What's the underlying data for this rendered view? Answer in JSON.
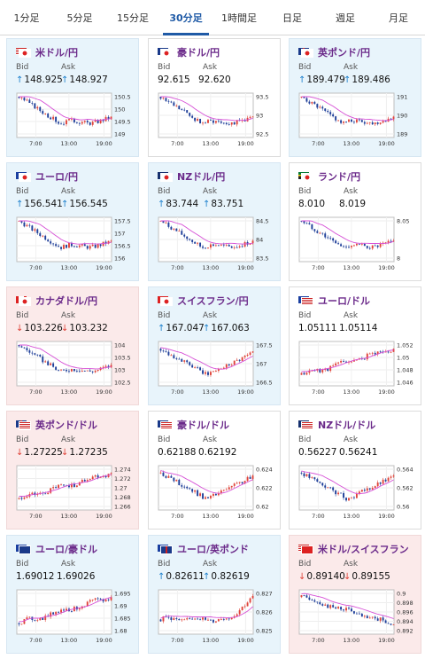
{
  "tabs": [
    {
      "label": "1分足",
      "active": false
    },
    {
      "label": "5分足",
      "active": false
    },
    {
      "label": "15分足",
      "active": false
    },
    {
      "label": "30分足",
      "active": true
    },
    {
      "label": "1時間足",
      "active": false
    },
    {
      "label": "日足",
      "active": false
    },
    {
      "label": "週足",
      "active": false
    },
    {
      "label": "月足",
      "active": false
    }
  ],
  "labels": {
    "bid": "Bid",
    "ask": "Ask"
  },
  "time_labels": [
    "7:00",
    "13:00",
    "19:00"
  ],
  "colors": {
    "up_arrow": "#1b7fcc",
    "down_arrow": "#e0443a",
    "candle_up": "#e0443a",
    "candle_down": "#1f3f99",
    "moving_average": "#d64fd6",
    "pair_text": "#6b2a8a",
    "tab_active": "#1f5aa6"
  },
  "cards": [
    {
      "pair": "米ドル/円",
      "flag_icons": [
        "us-flag-icon",
        "jp-flag-icon"
      ],
      "theme": "up",
      "bid_dir": "up",
      "ask_dir": "up",
      "bid": "148.925",
      "ask": "148.927",
      "y_ticks": [
        "150.5",
        "150",
        "149.5",
        "149"
      ],
      "trend": "down-then-flat"
    },
    {
      "pair": "豪ドル/円",
      "flag_icons": [
        "au-flag-icon",
        "jp-flag-icon"
      ],
      "theme": "flat",
      "bid_dir": "none",
      "ask_dir": "none",
      "bid": "92.615",
      "ask": "92.620",
      "y_ticks": [
        "93.5",
        "93",
        "92.5"
      ],
      "trend": "down-then-flat"
    },
    {
      "pair": "英ポンド/円",
      "flag_icons": [
        "gb-flag-icon",
        "jp-flag-icon"
      ],
      "theme": "up",
      "bid_dir": "up",
      "ask_dir": "up",
      "bid": "189.479",
      "ask": "189.486",
      "y_ticks": [
        "191",
        "190",
        "189"
      ],
      "trend": "down-then-flat"
    },
    {
      "pair": "ユーロ/円",
      "flag_icons": [
        "eu-flag-icon",
        "jp-flag-icon"
      ],
      "theme": "up",
      "bid_dir": "up",
      "ask_dir": "up",
      "bid": "156.541",
      "ask": "156.545",
      "y_ticks": [
        "157.5",
        "157",
        "156.5",
        "156"
      ],
      "trend": "down-then-flat"
    },
    {
      "pair": "NZドル/円",
      "flag_icons": [
        "nz-flag-icon",
        "jp-flag-icon"
      ],
      "theme": "up",
      "bid_dir": "up",
      "ask_dir": "up",
      "bid": "83.744",
      "ask": "83.751",
      "y_ticks": [
        "84.5",
        "84",
        "83.5"
      ],
      "trend": "down-then-flat"
    },
    {
      "pair": "ランド/円",
      "flag_icons": [
        "za-flag-icon",
        "jp-flag-icon"
      ],
      "theme": "flat",
      "bid_dir": "none",
      "ask_dir": "none",
      "bid": "8.010",
      "ask": "8.019",
      "y_ticks": [
        "8.05",
        "8"
      ],
      "trend": "down-then-flat"
    },
    {
      "pair": "カナダドル/円",
      "flag_icons": [
        "ca-flag-icon",
        "jp-flag-icon"
      ],
      "theme": "down",
      "bid_dir": "down",
      "ask_dir": "down",
      "bid": "103.226",
      "ask": "103.232",
      "y_ticks": [
        "104",
        "103.5",
        "103",
        "102.5"
      ],
      "trend": "down-then-flat"
    },
    {
      "pair": "スイスフラン/円",
      "flag_icons": [
        "ch-flag-icon",
        "jp-flag-icon"
      ],
      "theme": "up",
      "bid_dir": "up",
      "ask_dir": "up",
      "bid": "167.047",
      "ask": "167.063",
      "y_ticks": [
        "167.5",
        "167",
        "166.5"
      ],
      "trend": "down-then-up"
    },
    {
      "pair": "ユーロ/ドル",
      "flag_icons": [
        "eu-flag-icon",
        "us-flag-icon"
      ],
      "theme": "flat",
      "bid_dir": "none",
      "ask_dir": "none",
      "bid": "1.05111",
      "ask": "1.05114",
      "y_ticks": [
        "1.052",
        "1.05",
        "1.048",
        "1.046"
      ],
      "trend": "up"
    },
    {
      "pair": "英ポンド/ドル",
      "flag_icons": [
        "gb-flag-icon",
        "us-flag-icon"
      ],
      "theme": "down",
      "bid_dir": "down",
      "ask_dir": "down",
      "bid": "1.27225",
      "ask": "1.27235",
      "y_ticks": [
        "1.274",
        "1.272",
        "1.27",
        "1.268",
        "1.266"
      ],
      "trend": "up"
    },
    {
      "pair": "豪ドル/ドル",
      "flag_icons": [
        "au-flag-icon",
        "us-flag-icon"
      ],
      "theme": "flat",
      "bid_dir": "none",
      "ask_dir": "none",
      "bid": "0.62188",
      "ask": "0.62192",
      "y_ticks": [
        "0.624",
        "0.622",
        "0.62"
      ],
      "trend": "down-then-up"
    },
    {
      "pair": "NZドル/ドル",
      "flag_icons": [
        "nz-flag-icon",
        "us-flag-icon"
      ],
      "theme": "flat",
      "bid_dir": "none",
      "ask_dir": "none",
      "bid": "0.56227",
      "ask": "0.56241",
      "y_ticks": [
        "0.564",
        "0.562",
        "0.56"
      ],
      "trend": "down-then-up"
    },
    {
      "pair": "ユーロ/豪ドル",
      "flag_icons": [
        "eu-flag-icon",
        "au-flag-icon"
      ],
      "theme": "up",
      "bid_dir": "none",
      "ask_dir": "none",
      "bid": "1.69012",
      "ask": "1.69026",
      "y_ticks": [
        "1.695",
        "1.69",
        "1.685",
        "1.68"
      ],
      "trend": "up"
    },
    {
      "pair": "ユーロ/英ポンド",
      "flag_icons": [
        "eu-flag-icon",
        "gb-flag-icon"
      ],
      "theme": "up",
      "bid_dir": "up",
      "ask_dir": "up",
      "bid": "0.82611",
      "ask": "0.82619",
      "y_ticks": [
        "0.827",
        "0.826",
        "0.825"
      ],
      "trend": "flat-then-up"
    },
    {
      "pair": "米ドル/スイスフラン",
      "flag_icons": [
        "us-flag-icon",
        "ch-flag-icon"
      ],
      "theme": "down",
      "bid_dir": "down",
      "ask_dir": "down",
      "bid": "0.89140",
      "ask": "0.89155",
      "y_ticks": [
        "0.9",
        "0.898",
        "0.896",
        "0.894",
        "0.892"
      ],
      "trend": "down"
    }
  ]
}
